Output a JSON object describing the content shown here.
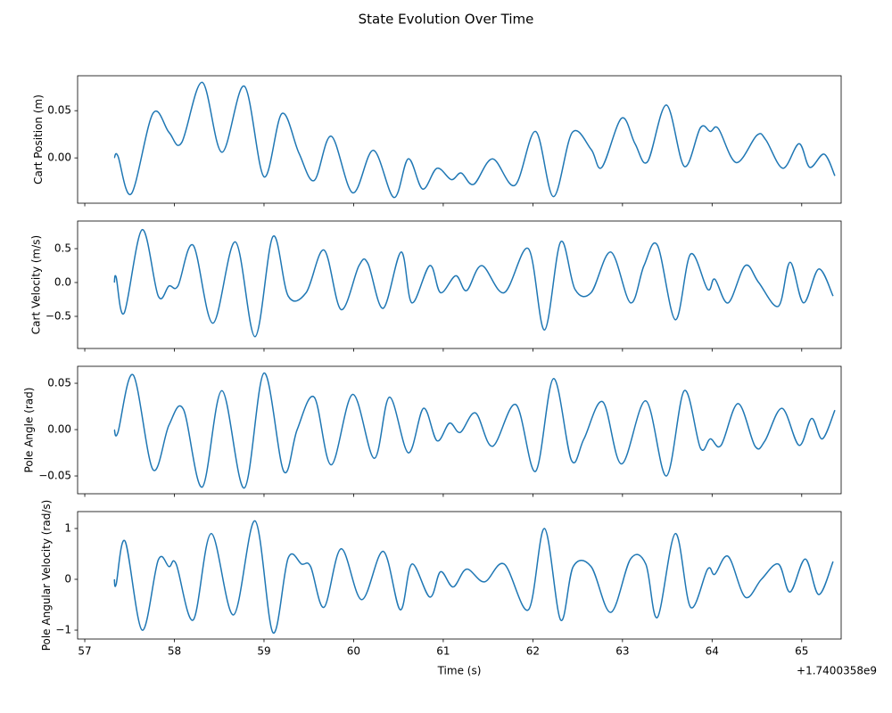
{
  "title": "State Evolution Over Time",
  "chart_data": [
    {
      "type": "line",
      "ylabel": "Cart Position (m)",
      "xlim": [
        56.92,
        65.44
      ],
      "xticks": [
        57,
        58,
        59,
        60,
        61,
        62,
        63,
        64,
        65
      ],
      "xticklabels": false,
      "ylim": [
        -0.048,
        0.087
      ],
      "yticks": [
        {
          "value": 0,
          "label": "0.00"
        },
        {
          "value": 0.05,
          "label": "0.05"
        }
      ],
      "x": [
        57.33,
        57.37,
        57.52,
        57.76,
        57.94,
        58.08,
        58.31,
        58.53,
        58.78,
        59.0,
        59.2,
        59.39,
        59.56,
        59.75,
        59.99,
        60.22,
        60.45,
        60.61,
        60.77,
        60.93,
        61.09,
        61.2,
        61.34,
        61.55,
        61.8,
        62.03,
        62.23,
        62.44,
        62.65,
        62.77,
        62.99,
        63.14,
        63.28,
        63.49,
        63.69,
        63.87,
        63.98,
        64.07,
        64.27,
        64.5,
        64.6,
        64.79,
        64.97,
        65.09,
        65.25,
        65.37
      ],
      "series": [
        {
          "color": "#1f77b4",
          "values": [
            0,
            0.002,
            -0.038,
            0.047,
            0.027,
            0.016,
            0.08,
            0.006,
            0.076,
            -0.02,
            0.047,
            0.005,
            -0.024,
            0.023,
            -0.037,
            0.008,
            -0.042,
            -0.001,
            -0.033,
            -0.011,
            -0.023,
            -0.016,
            -0.028,
            -0.001,
            -0.029,
            0.028,
            -0.041,
            0.027,
            0.009,
            -0.01,
            0.042,
            0.015,
            -0.004,
            0.056,
            -0.009,
            0.032,
            0.028,
            0.031,
            -0.005,
            0.024,
            0.019,
            -0.011,
            0.015,
            -0.01,
            0.004,
            -0.019
          ]
        }
      ]
    },
    {
      "type": "line",
      "ylabel": "Cart Velocity (m/s)",
      "xlim": [
        56.92,
        65.44
      ],
      "xticks": [
        57,
        58,
        59,
        60,
        61,
        62,
        63,
        64,
        65
      ],
      "xticklabels": false,
      "ylim": [
        -0.974,
        0.908
      ],
      "yticks": [
        {
          "value": -0.5,
          "label": "−0.5"
        },
        {
          "value": 0,
          "label": "0.0"
        },
        {
          "value": 0.5,
          "label": "0.5"
        }
      ],
      "x": [
        57.33,
        57.35,
        57.44,
        57.64,
        57.82,
        57.94,
        58.04,
        58.21,
        58.43,
        58.68,
        58.9,
        59.1,
        59.27,
        59.47,
        59.67,
        59.86,
        60.06,
        60.16,
        60.33,
        60.53,
        60.65,
        60.85,
        60.97,
        61.14,
        61.26,
        61.43,
        61.68,
        61.95,
        62.13,
        62.31,
        62.47,
        62.65,
        62.87,
        63.09,
        63.24,
        63.39,
        63.59,
        63.76,
        63.95,
        64.03,
        64.18,
        64.37,
        64.52,
        64.74,
        64.87,
        65.02,
        65.19,
        65.35
      ],
      "series": [
        {
          "color": "#1f77b4",
          "values": [
            0,
            0.08,
            -0.45,
            0.78,
            -0.2,
            -0.05,
            -0.05,
            0.55,
            -0.6,
            0.6,
            -0.8,
            0.68,
            -0.2,
            -0.15,
            0.48,
            -0.4,
            0.25,
            0.28,
            -0.38,
            0.45,
            -0.3,
            0.25,
            -0.15,
            0.1,
            -0.12,
            0.25,
            -0.15,
            0.5,
            -0.7,
            0.6,
            -0.1,
            -0.15,
            0.45,
            -0.3,
            0.25,
            0.55,
            -0.55,
            0.42,
            -0.1,
            0.05,
            -0.3,
            0.25,
            0.0,
            -0.35,
            0.3,
            -0.3,
            0.2,
            -0.2
          ]
        }
      ]
    },
    {
      "type": "line",
      "ylabel": "Pole Angle (rad)",
      "xlim": [
        56.92,
        65.44
      ],
      "xticks": [
        57,
        58,
        59,
        60,
        61,
        62,
        63,
        64,
        65
      ],
      "xticklabels": false,
      "ylim": [
        -0.0692,
        0.0683
      ],
      "yticks": [
        {
          "value": -0.05,
          "label": "−0.05"
        },
        {
          "value": 0,
          "label": "0.00"
        },
        {
          "value": 0.05,
          "label": "0.05"
        }
      ],
      "x": [
        57.33,
        57.37,
        57.54,
        57.76,
        57.94,
        58.1,
        58.31,
        58.53,
        58.78,
        59.0,
        59.22,
        59.37,
        59.56,
        59.75,
        59.99,
        60.23,
        60.4,
        60.61,
        60.78,
        60.93,
        61.07,
        61.19,
        61.36,
        61.55,
        61.81,
        62.03,
        62.23,
        62.43,
        62.57,
        62.78,
        62.99,
        63.26,
        63.49,
        63.69,
        63.87,
        63.98,
        64.1,
        64.29,
        64.48,
        64.59,
        64.78,
        64.97,
        65.11,
        65.23,
        65.37
      ],
      "series": [
        {
          "color": "#1f77b4",
          "values": [
            0,
            -0.003,
            0.059,
            -0.043,
            0.005,
            0.022,
            -0.062,
            0.042,
            -0.063,
            0.061,
            -0.045,
            0.0,
            0.035,
            -0.038,
            0.038,
            -0.031,
            0.035,
            -0.025,
            0.023,
            -0.012,
            0.007,
            -0.003,
            0.018,
            -0.018,
            0.027,
            -0.045,
            0.055,
            -0.033,
            -0.01,
            0.03,
            -0.037,
            0.031,
            -0.05,
            0.042,
            -0.02,
            -0.01,
            -0.017,
            0.028,
            -0.018,
            -0.012,
            0.023,
            -0.017,
            0.012,
            -0.01,
            0.021
          ]
        }
      ]
    },
    {
      "type": "line",
      "ylabel": "Pole Angular Velocity (rad/s)",
      "xlabel": "Time (s)",
      "x_offset_label": "+1.7400358e9",
      "xlim": [
        56.92,
        65.44
      ],
      "xticks": [
        57,
        58,
        59,
        60,
        61,
        62,
        63,
        64,
        65
      ],
      "xticklabels": true,
      "ylim": [
        -1.175,
        1.333
      ],
      "yticks": [
        {
          "value": -1,
          "label": "−1"
        },
        0,
        1
      ],
      "x": [
        57.33,
        57.35,
        57.45,
        57.64,
        57.82,
        57.94,
        58.02,
        58.21,
        58.41,
        58.66,
        58.9,
        59.1,
        59.27,
        59.42,
        59.52,
        59.67,
        59.86,
        60.09,
        60.33,
        60.52,
        60.65,
        60.85,
        60.97,
        61.11,
        61.26,
        61.46,
        61.68,
        61.95,
        62.13,
        62.31,
        62.45,
        62.65,
        62.87,
        63.09,
        63.26,
        63.39,
        63.59,
        63.76,
        63.95,
        64.03,
        64.18,
        64.37,
        64.55,
        64.74,
        64.87,
        65.04,
        65.19,
        65.35
      ],
      "series": [
        {
          "color": "#1f77b4",
          "values": [
            0,
            -0.1,
            0.75,
            -1.0,
            0.38,
            0.25,
            0.3,
            -0.8,
            0.9,
            -0.7,
            1.15,
            -1.05,
            0.42,
            0.3,
            0.25,
            -0.55,
            0.6,
            -0.4,
            0.55,
            -0.6,
            0.3,
            -0.35,
            0.15,
            -0.15,
            0.2,
            -0.05,
            0.3,
            -0.6,
            1.0,
            -0.8,
            0.25,
            0.25,
            -0.65,
            0.4,
            0.3,
            -0.75,
            0.9,
            -0.55,
            0.2,
            0.1,
            0.45,
            -0.35,
            0.0,
            0.3,
            -0.25,
            0.4,
            -0.3,
            0.35
          ]
        }
      ]
    }
  ]
}
